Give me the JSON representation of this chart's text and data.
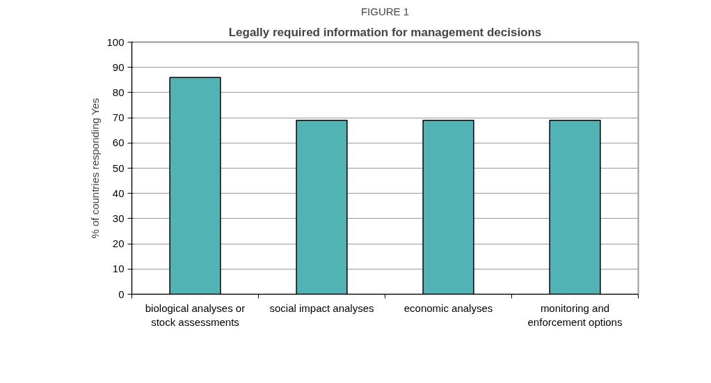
{
  "chart_data": {
    "type": "bar",
    "title": "FIGURE 1",
    "subtitle": "Legally required information for management decisions",
    "ylabel": "% of countries responding Yes",
    "categories": [
      "biological analyses or stock assessments",
      "social impact analyses",
      "economic analyses",
      "monitoring and enforcement options"
    ],
    "values": [
      86,
      69,
      69,
      69
    ],
    "color": "#52b3b4",
    "ylim": [
      0,
      100
    ],
    "yticks": [
      0,
      10,
      20,
      30,
      40,
      50,
      60,
      70,
      80,
      90,
      100
    ],
    "grid": "y"
  }
}
